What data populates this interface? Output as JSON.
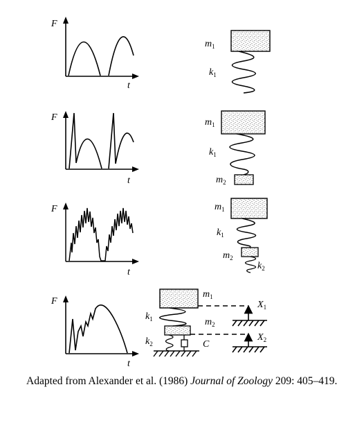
{
  "panels": [
    {
      "axis_y": "F",
      "axis_x": "t",
      "masses": [
        "m",
        "1"
      ],
      "springs": [
        "k",
        "1"
      ]
    },
    {
      "axis_y": "F",
      "axis_x": "t",
      "masses": [
        "m",
        "1",
        "m",
        "2"
      ],
      "springs": [
        "k",
        "1"
      ]
    },
    {
      "axis_y": "F",
      "axis_x": "t",
      "masses": [
        "m",
        "1",
        "m",
        "2"
      ],
      "springs": [
        "k",
        "1",
        "k",
        "2"
      ]
    },
    {
      "axis_y": "F",
      "axis_x": "t",
      "masses": [
        "m",
        "1",
        "m",
        "2"
      ],
      "springs": [
        "k",
        "1",
        "k",
        "2"
      ],
      "damper": "C",
      "displacements": [
        "X",
        "1",
        "X",
        "2"
      ]
    }
  ],
  "caption": {
    "prefix": "Adapted from Alexander et al. (1986) ",
    "journal": "Journal of Zoology",
    "suffix": " 209: 405–419."
  }
}
